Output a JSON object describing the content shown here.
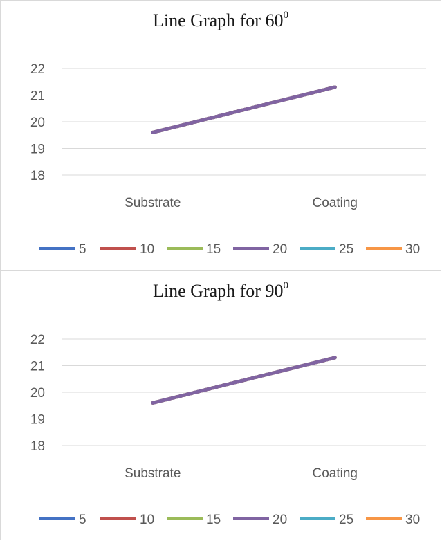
{
  "chart_data": [
    {
      "type": "line",
      "title": "Line Graph for 60",
      "title_superscript": "0",
      "categories": [
        "Substrate",
        "Coating"
      ],
      "ylim": [
        18,
        22
      ],
      "yticks": [
        "18",
        "19",
        "20",
        "21",
        "22"
      ],
      "grid": true,
      "legend_position": "bottom",
      "series": [
        {
          "name": "5",
          "color": "#4472c4",
          "values": [
            19.6,
            21.3
          ]
        },
        {
          "name": "10",
          "color": "#c0504d",
          "values": [
            19.6,
            21.3
          ]
        },
        {
          "name": "15",
          "color": "#9bbb59",
          "values": [
            19.6,
            21.3
          ]
        },
        {
          "name": "20",
          "color": "#8064a2",
          "values": [
            19.6,
            21.3
          ]
        },
        {
          "name": "25",
          "color": "#4bacc6",
          "values": [
            19.6,
            21.3
          ]
        },
        {
          "name": "30",
          "color": "#f79646",
          "values": [
            19.6,
            21.3
          ]
        }
      ]
    },
    {
      "type": "line",
      "title": "Line Graph for 90",
      "title_superscript": "0",
      "categories": [
        "Substrate",
        "Coating"
      ],
      "ylim": [
        18,
        22
      ],
      "yticks": [
        "18",
        "19",
        "20",
        "21",
        "22"
      ],
      "grid": true,
      "legend_position": "bottom",
      "series": [
        {
          "name": "5",
          "color": "#4472c4",
          "values": [
            19.6,
            21.3
          ]
        },
        {
          "name": "10",
          "color": "#c0504d",
          "values": [
            19.6,
            21.3
          ]
        },
        {
          "name": "15",
          "color": "#9bbb59",
          "values": [
            19.6,
            21.3
          ]
        },
        {
          "name": "20",
          "color": "#8064a2",
          "values": [
            19.6,
            21.3
          ]
        },
        {
          "name": "25",
          "color": "#4bacc6",
          "values": [
            19.6,
            21.3
          ]
        },
        {
          "name": "30",
          "color": "#f79646",
          "values": [
            19.6,
            21.3
          ]
        }
      ]
    }
  ]
}
